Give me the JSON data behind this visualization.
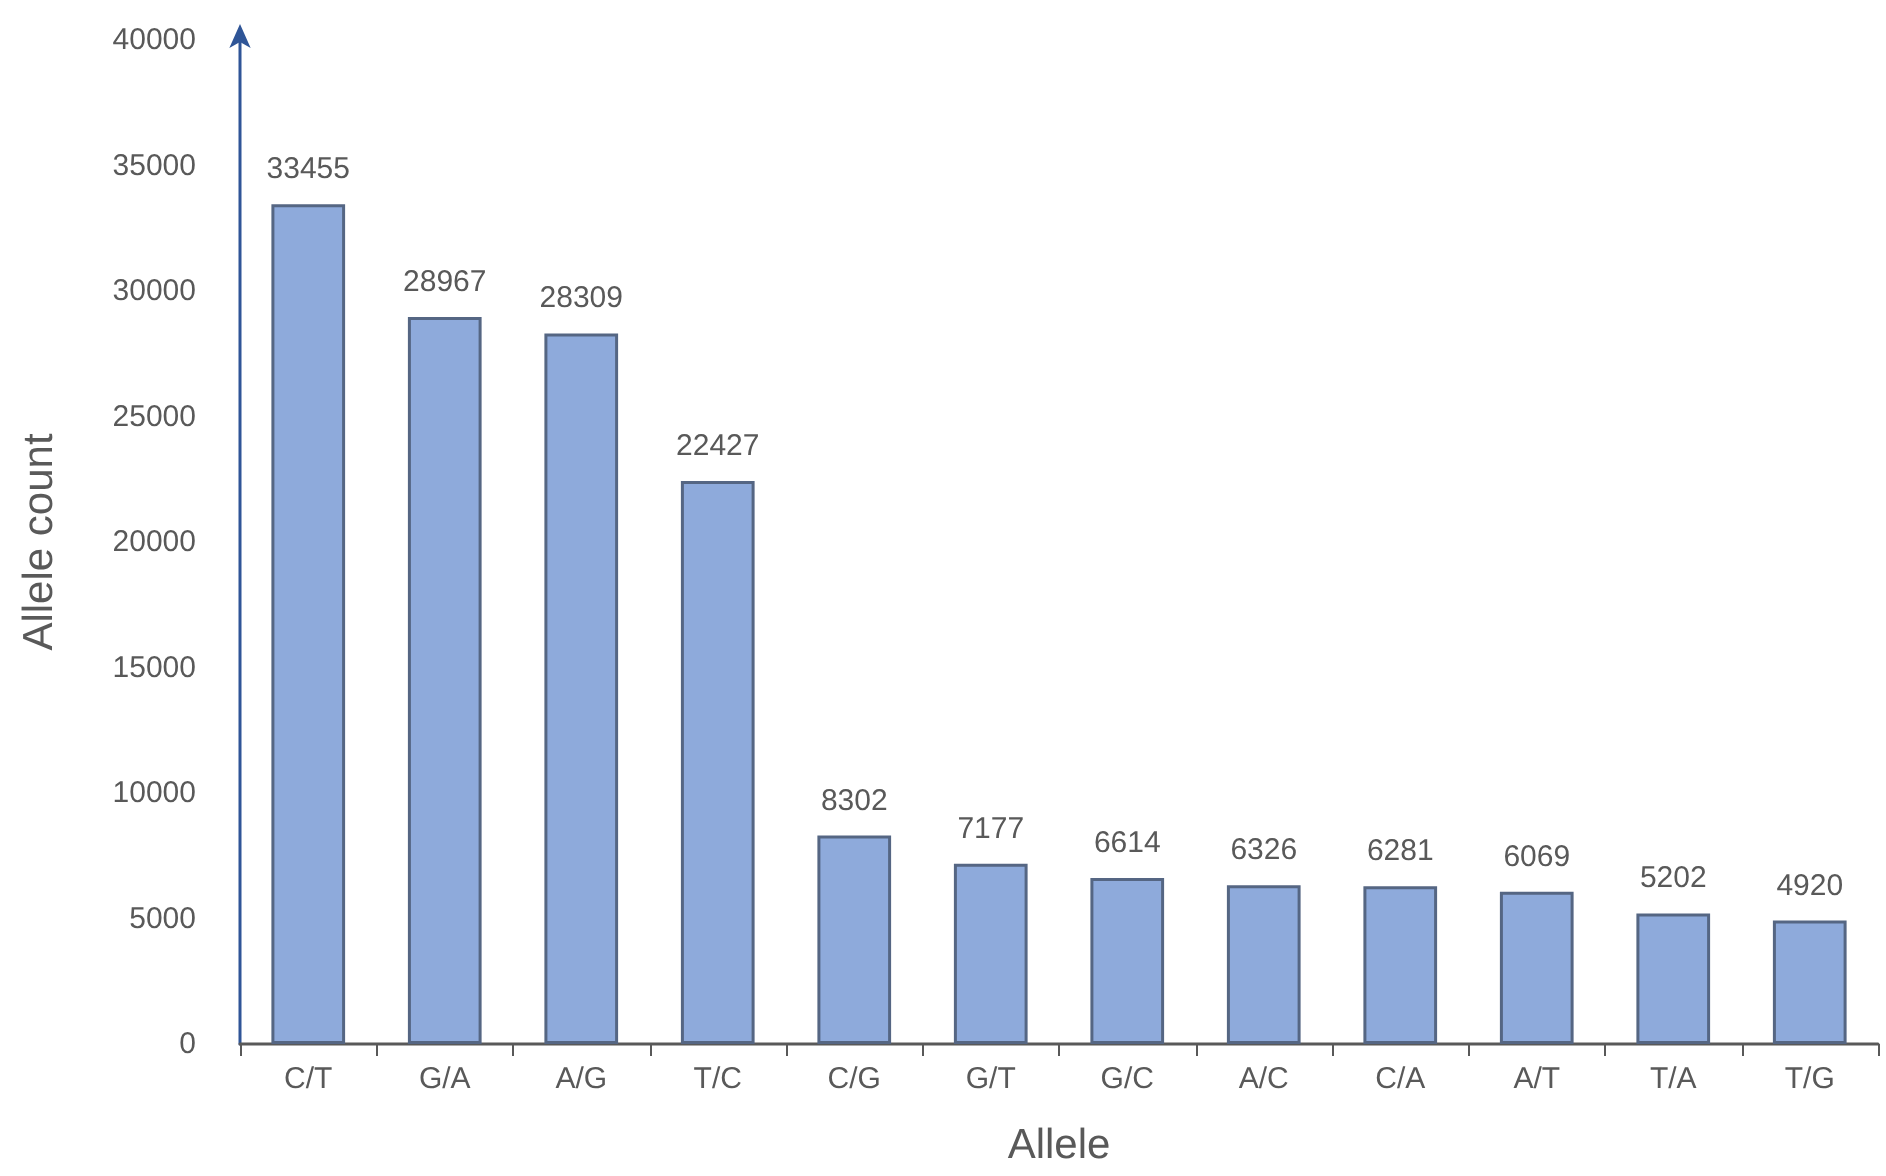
{
  "chart_data": {
    "type": "bar",
    "xlabel": "Allele",
    "ylabel": "Allele count",
    "categories": [
      "C/T",
      "G/A",
      "A/G",
      "T/C",
      "C/G",
      "G/T",
      "G/C",
      "A/C",
      "C/A",
      "A/T",
      "T/A",
      "T/G"
    ],
    "values": [
      33455,
      28967,
      28309,
      22427,
      8302,
      7177,
      6614,
      6326,
      6281,
      6069,
      5202,
      4920
    ],
    "color": "#8eaadb",
    "ylim": [
      0,
      40000
    ],
    "yticks": [
      0,
      5000,
      10000,
      15000,
      20000,
      25000,
      30000,
      35000,
      40000
    ],
    "grid": false,
    "data_labels": true
  }
}
